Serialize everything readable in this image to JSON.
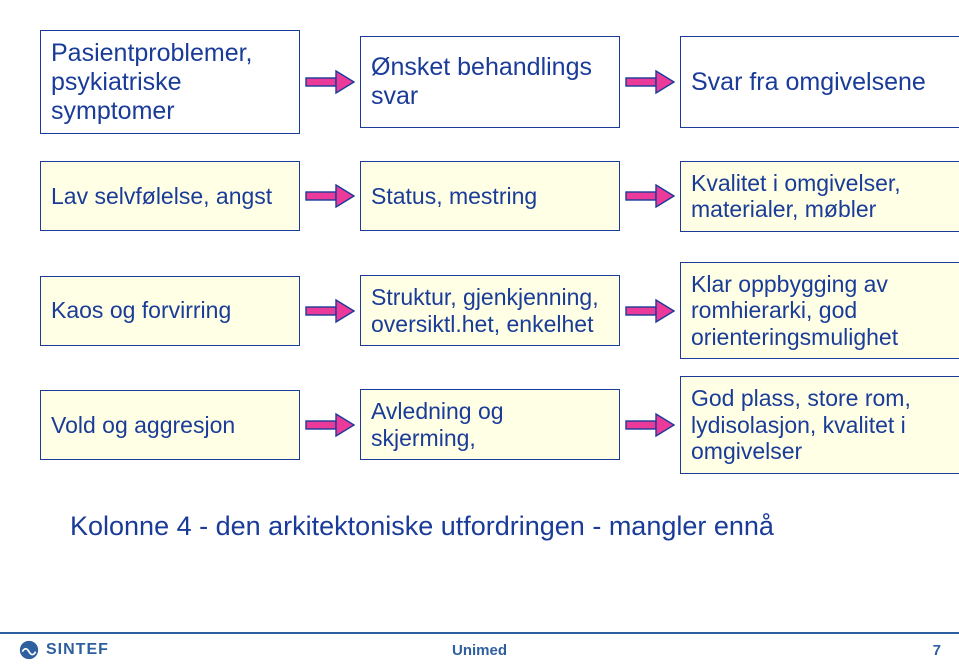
{
  "colors": {
    "header_border": "#1a3c98",
    "header_fill": "#ffffff",
    "header_text": "#1a3c98",
    "cell_border": "#1a3c98",
    "cell_fill": "#ffffe5",
    "cell_text": "#1a3c98",
    "arrow_fill": "#ec3a9b",
    "arrow_stroke": "#1a3c98",
    "caption_text": "#1a3c98",
    "rule": "#2b5fa1",
    "logo_bg": "#2e5f9e",
    "logo_text": "#2e5f9e",
    "footer_center": "#2e5f9e",
    "footer_page": "#2e5f9e"
  },
  "columns": {
    "col1": {
      "header": "Pasientproblemer, psykiatriske symptomer"
    },
    "col2": {
      "header": "Ønsket behandlings svar"
    },
    "col3": {
      "header": "Svar fra omgivelsene"
    }
  },
  "rows": [
    {
      "c1": "Lav selvfølelse, angst",
      "c2": "Status, mestring",
      "c3": "Kvalitet i omgivelser, materialer, møbler"
    },
    {
      "c1": "Kaos og forvirring",
      "c2": "Struktur, gjenkjenning, oversiktl.het, enkelhet",
      "c3": "Klar oppbygging av romhierarki, god orienteringsmulighet"
    },
    {
      "c1": "Vold og aggresjon",
      "c2": "Avledning og skjerming,",
      "c3": "God plass, store rom, lydisolasjon, kvalitet i omgivelser"
    }
  ],
  "caption": "Kolonne 4 - den arkitektoniske utfordringen - mangler ennå",
  "footer": {
    "logo_text": "SINTEF",
    "center": "Unimed",
    "page": "7"
  }
}
